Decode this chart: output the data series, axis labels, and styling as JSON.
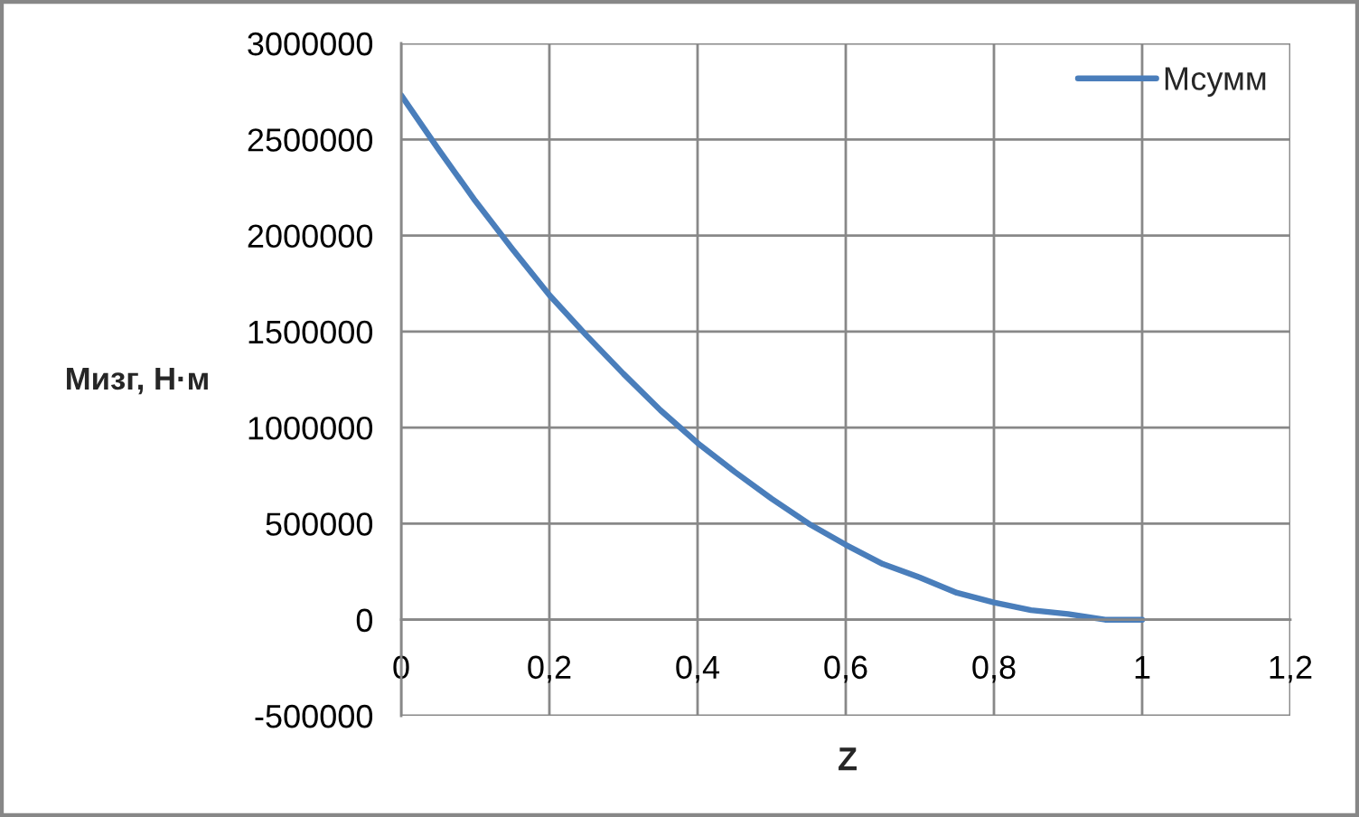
{
  "chart_data": {
    "type": "line",
    "xlabel": "Z",
    "ylabel": "Мизг, Н·м",
    "x": [
      0,
      0.05,
      0.1,
      0.15,
      0.2,
      0.25,
      0.3,
      0.35,
      0.4,
      0.45,
      0.5,
      0.55,
      0.6,
      0.65,
      0.7,
      0.75,
      0.8,
      0.85,
      0.9,
      0.95,
      1
    ],
    "series": [
      {
        "name": "Мсумм",
        "color": "#4a7ebb",
        "values": [
          2730000,
          2450000,
          2180000,
          1930000,
          1690000,
          1480000,
          1280000,
          1090000,
          920000,
          770000,
          630000,
          500000,
          390000,
          290000,
          220000,
          140000,
          90000,
          50000,
          30000,
          0,
          0
        ]
      }
    ],
    "xlim": [
      0,
      1.2
    ],
    "xticks": [
      0,
      {
        "value": 0.2,
        "label": "0,2"
      },
      {
        "value": 0.4,
        "label": "0,4"
      },
      {
        "value": 0.6,
        "label": "0,6"
      },
      {
        "value": 0.8,
        "label": "0,8"
      },
      1,
      {
        "value": 1.2,
        "label": "1,2"
      }
    ],
    "ylim": [
      -500000,
      3000000
    ],
    "yticks": [
      -500000,
      0,
      500000,
      1000000,
      1500000,
      2000000,
      2500000,
      3000000
    ],
    "grid": true,
    "legend": "top right",
    "line_style": "solid"
  }
}
